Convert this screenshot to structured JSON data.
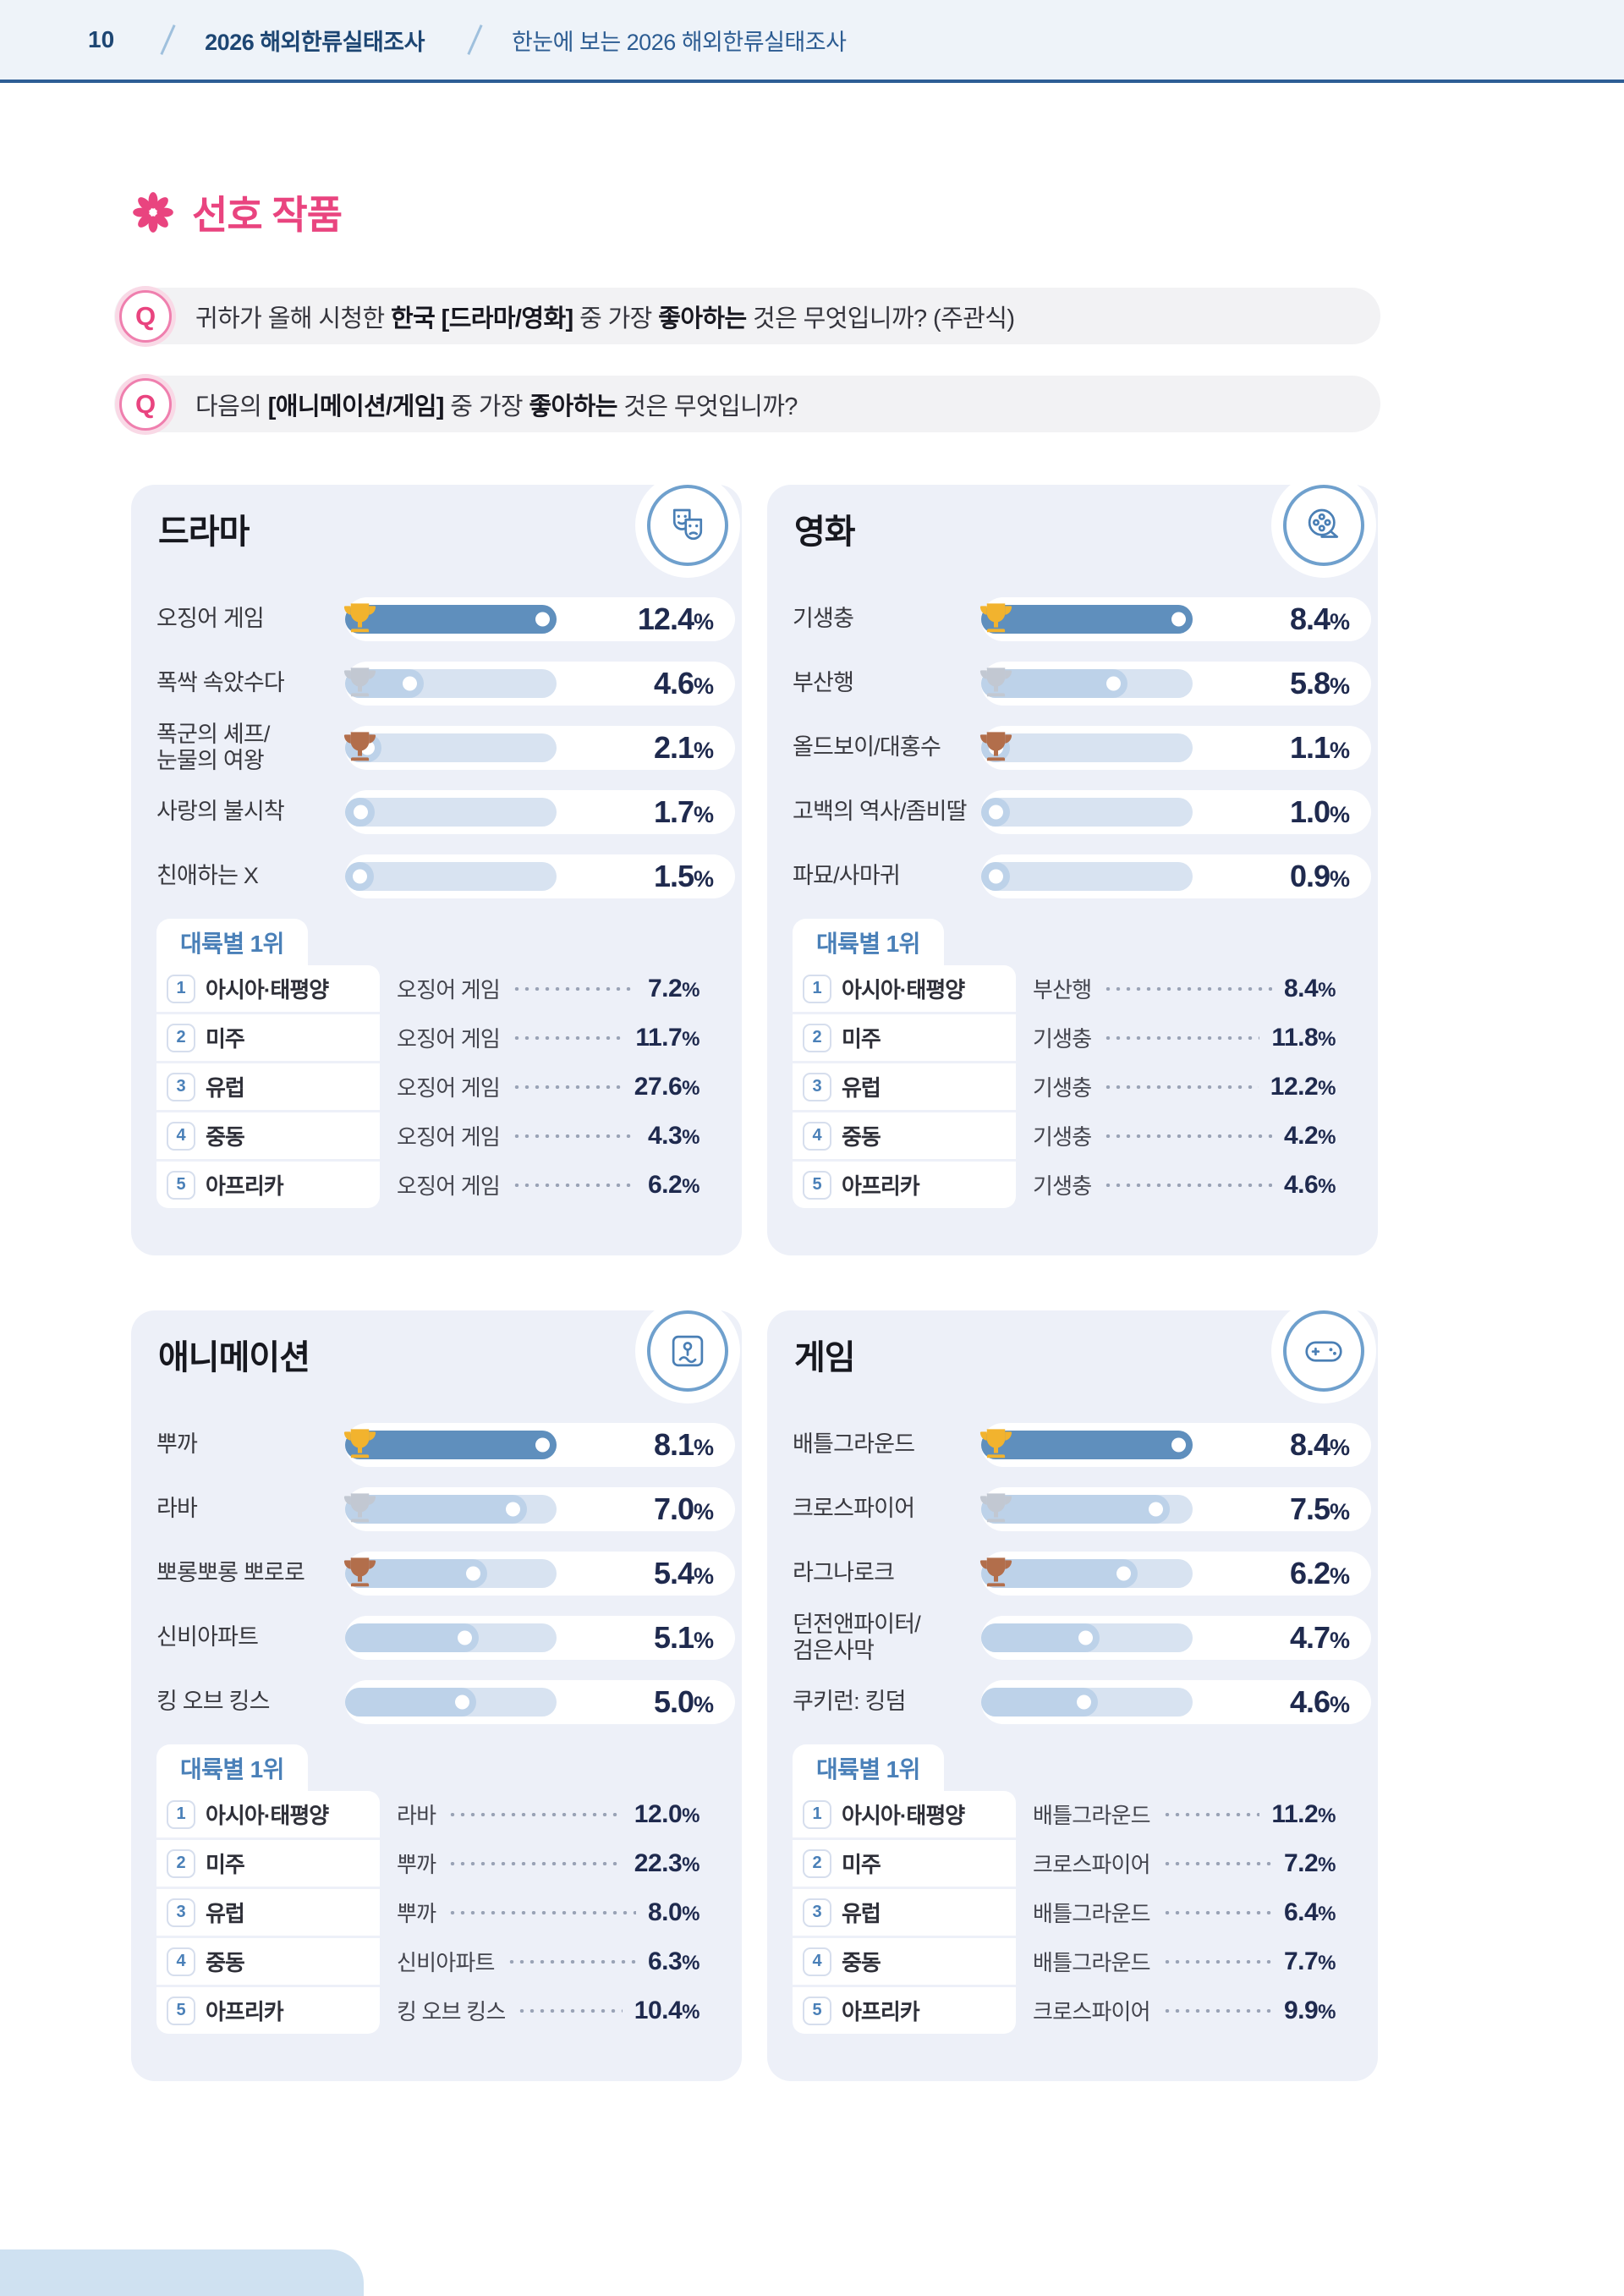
{
  "header": {
    "page_number": "10",
    "doc_title": "2026 해외한류실태조사",
    "page_title": "한눈에 보는 2026 해외한류실태조사"
  },
  "section": {
    "title": "선호 작품"
  },
  "q_label": "Q",
  "units": {
    "percent": "%"
  },
  "questions": [
    {
      "segments": [
        {
          "t": "귀하가 올해 시청한 ",
          "b": false
        },
        {
          "t": "한국 [드라마/영화]",
          "b": true
        },
        {
          "t": " 중 가장 ",
          "b": false
        },
        {
          "t": "좋아하는",
          "b": true
        },
        {
          "t": " 것은 무엇입니까? (주관식)",
          "b": false
        }
      ]
    },
    {
      "segments": [
        {
          "t": "다음의 ",
          "b": false
        },
        {
          "t": "[애니메이션/게임]",
          "b": true
        },
        {
          "t": " 중 가장 ",
          "b": false
        },
        {
          "t": "좋아하는",
          "b": true
        },
        {
          "t": " 것은 무엇입니까?",
          "b": false
        }
      ]
    }
  ],
  "panels": [
    {
      "title": "드라마",
      "icon": "drama-masks",
      "continent_title": "대륙별 1위",
      "items": [
        {
          "label": "오징어 게임",
          "value": "12.4",
          "fill": 100,
          "medal": "gold"
        },
        {
          "label": "폭싹 속았수다",
          "value": "4.6",
          "fill": 37,
          "medal": "silver"
        },
        {
          "label": "폭군의 셰프/\n눈물의 여왕",
          "value": "2.1",
          "fill": 17,
          "medal": "bronze"
        },
        {
          "label": "사랑의 불시착",
          "value": "1.7",
          "fill": 14
        },
        {
          "label": "친애하는 X",
          "value": "1.5",
          "fill": 12
        }
      ],
      "continents": [
        {
          "rank": "1",
          "region": "아시아·태평양",
          "work": "오징어 게임",
          "value": "7.2"
        },
        {
          "rank": "2",
          "region": "미주",
          "work": "오징어 게임",
          "value": "11.7"
        },
        {
          "rank": "3",
          "region": "유럽",
          "work": "오징어 게임",
          "value": "27.6"
        },
        {
          "rank": "4",
          "region": "중동",
          "work": "오징어 게임",
          "value": "4.3"
        },
        {
          "rank": "5",
          "region": "아프리카",
          "work": "오징어 게임",
          "value": "6.2"
        }
      ]
    },
    {
      "title": "영화",
      "icon": "film-reel",
      "continent_title": "대륙별 1위",
      "items": [
        {
          "label": "기생충",
          "value": "8.4",
          "fill": 100,
          "medal": "gold"
        },
        {
          "label": "부산행",
          "value": "5.8",
          "fill": 69,
          "medal": "silver"
        },
        {
          "label": "올드보이/대홍수",
          "value": "1.1",
          "fill": 13,
          "medal": "bronze"
        },
        {
          "label": "고백의 역사/좀비딸",
          "value": "1.0",
          "fill": 12
        },
        {
          "label": "파묘/사마귀",
          "value": "0.9",
          "fill": 11
        }
      ],
      "continents": [
        {
          "rank": "1",
          "region": "아시아·태평양",
          "work": "부산행",
          "value": "8.4"
        },
        {
          "rank": "2",
          "region": "미주",
          "work": "기생충",
          "value": "11.8"
        },
        {
          "rank": "3",
          "region": "유럽",
          "work": "기생충",
          "value": "12.2"
        },
        {
          "rank": "4",
          "region": "중동",
          "work": "기생충",
          "value": "4.2"
        },
        {
          "rank": "5",
          "region": "아프리카",
          "work": "기생충",
          "value": "4.6"
        }
      ]
    },
    {
      "title": "애니메이션",
      "icon": "animation-frame",
      "continent_title": "대륙별 1위",
      "items": [
        {
          "label": "뿌까",
          "value": "8.1",
          "fill": 100,
          "medal": "gold"
        },
        {
          "label": "라바",
          "value": "7.0",
          "fill": 86,
          "medal": "silver"
        },
        {
          "label": "뽀롱뽀롱 뽀로로",
          "value": "5.4",
          "fill": 67,
          "medal": "bronze"
        },
        {
          "label": "신비아파트",
          "value": "5.1",
          "fill": 63
        },
        {
          "label": "킹 오브 킹스",
          "value": "5.0",
          "fill": 62
        }
      ],
      "continents": [
        {
          "rank": "1",
          "region": "아시아·태평양",
          "work": "라바",
          "value": "12.0"
        },
        {
          "rank": "2",
          "region": "미주",
          "work": "뿌까",
          "value": "22.3"
        },
        {
          "rank": "3",
          "region": "유럽",
          "work": "뿌까",
          "value": "8.0"
        },
        {
          "rank": "4",
          "region": "중동",
          "work": "신비아파트",
          "value": "6.3"
        },
        {
          "rank": "5",
          "region": "아프리카",
          "work": "킹 오브 킹스",
          "value": "10.4"
        }
      ]
    },
    {
      "title": "게임",
      "icon": "gamepad",
      "continent_title": "대륙별 1위",
      "items": [
        {
          "label": "배틀그라운드",
          "value": "8.4",
          "fill": 100,
          "medal": "gold"
        },
        {
          "label": "크로스파이어",
          "value": "7.5",
          "fill": 89,
          "medal": "silver"
        },
        {
          "label": "라그나로크",
          "value": "6.2",
          "fill": 74,
          "medal": "bronze"
        },
        {
          "label": "던전앤파이터/\n검은사막",
          "value": "4.7",
          "fill": 56
        },
        {
          "label": "쿠키런: 킹덤",
          "value": "4.6",
          "fill": 55
        }
      ],
      "continents": [
        {
          "rank": "1",
          "region": "아시아·태평양",
          "work": "배틀그라운드",
          "value": "11.2"
        },
        {
          "rank": "2",
          "region": "미주",
          "work": "크로스파이어",
          "value": "7.2"
        },
        {
          "rank": "3",
          "region": "유럽",
          "work": "배틀그라운드",
          "value": "6.4"
        },
        {
          "rank": "4",
          "region": "중동",
          "work": "배틀그라운드",
          "value": "7.7"
        },
        {
          "rank": "5",
          "region": "아프리카",
          "work": "크로스파이어",
          "value": "9.9"
        }
      ]
    }
  ],
  "colors": {
    "accent_pink": "#e9447f",
    "bar_fill_primary": "#5f8fbd",
    "bar_fill_secondary": "#bdd2e9",
    "bar_track": "#d8e3f1",
    "card_bg": "#edf0f8",
    "header_line": "#2d5e95",
    "continent_accent": "#4a80b8",
    "gold": "#f2b32e",
    "silver": "#c2c8d2",
    "bronze": "#b26e4b"
  }
}
